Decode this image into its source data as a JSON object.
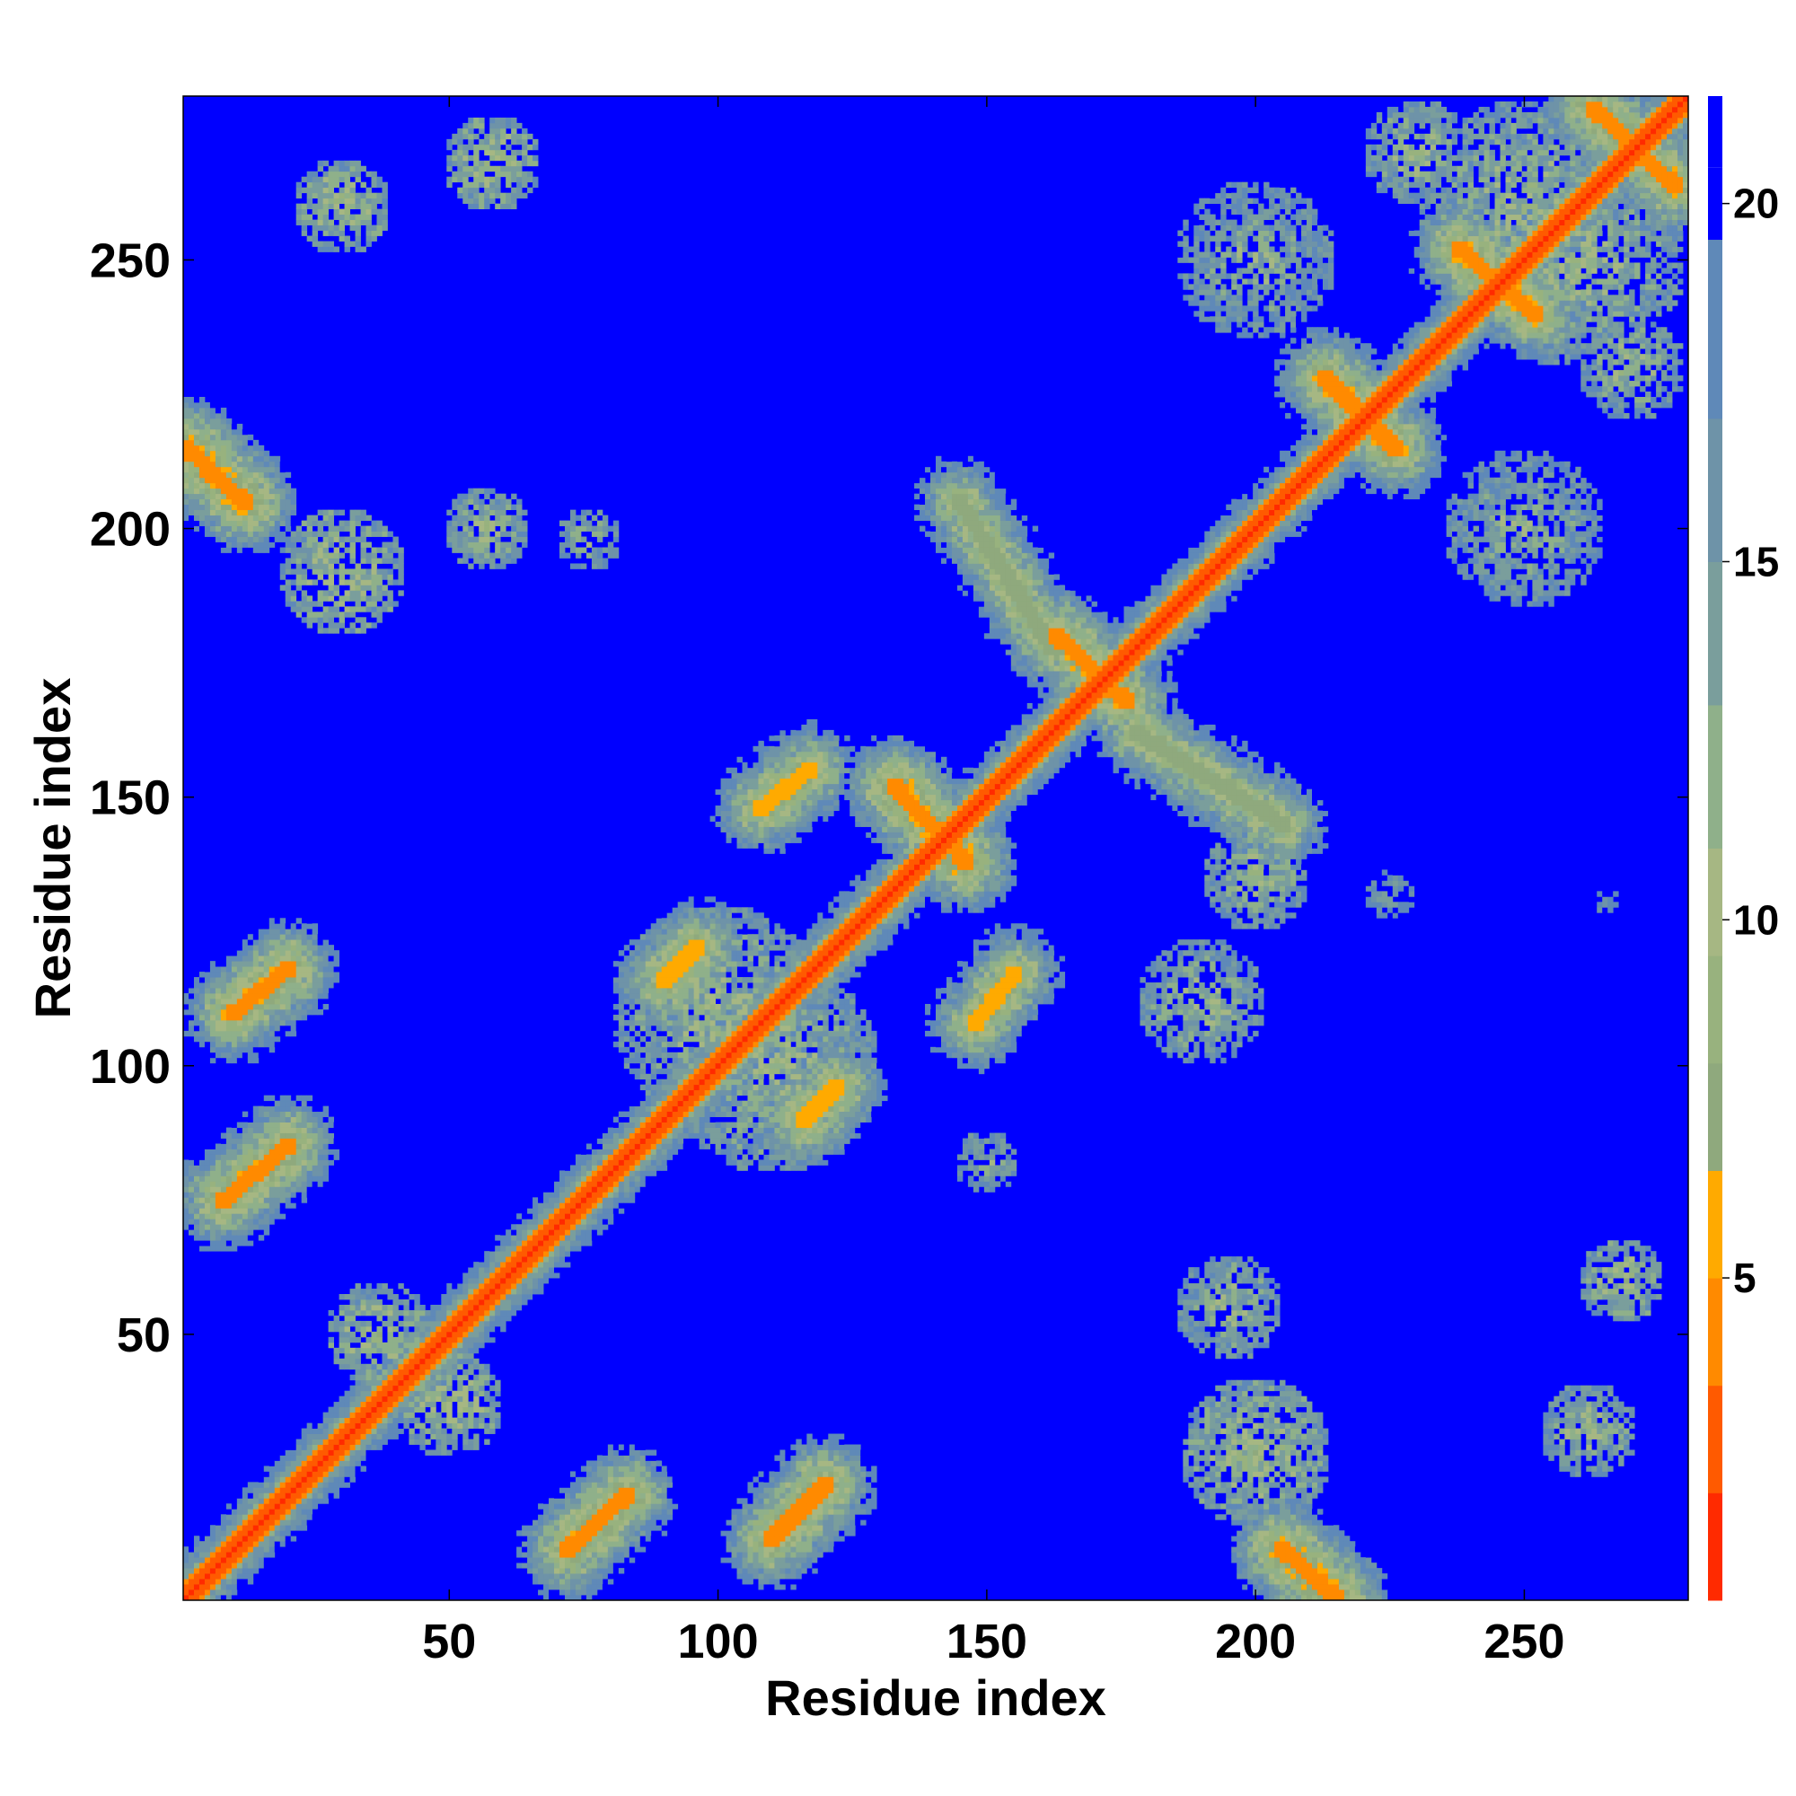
{
  "chart_data": {
    "type": "heatmap",
    "description_kind": "residue contact distance map",
    "xlabel": "Residue index",
    "ylabel": "Residue index",
    "xlim": [
      1,
      280
    ],
    "ylim": [
      1,
      280
    ],
    "xticks": [
      50,
      100,
      150,
      200,
      250
    ],
    "yticks": [
      50,
      100,
      150,
      200,
      250
    ],
    "colorbar": {
      "ticks": [
        5,
        10,
        15,
        20
      ],
      "range": [
        0.5,
        21.5
      ],
      "colors": [
        "#ff0000",
        "#ff2a00",
        "#ff5a00",
        "#ff8a00",
        "#ffaa00",
        "#8fa97d",
        "#98b27e",
        "#a6b783",
        "#8fb08a",
        "#7a9e9c",
        "#6e93a8",
        "#5f89b8",
        "#0000ff"
      ],
      "stops": [
        0.5,
        2,
        3.5,
        5,
        6.5,
        8,
        9.5,
        11,
        13,
        15,
        17,
        19.5,
        20.5
      ]
    },
    "cap_value": 21,
    "diagonal": {
      "width": 4,
      "value": 1
    },
    "features": [
      {
        "kind": "band",
        "from": [
          1,
          215
        ],
        "to": [
          12,
          205
        ],
        "value": 4
      },
      {
        "kind": "band",
        "from": [
          8,
          75
        ],
        "to": [
          20,
          85
        ],
        "value": 5
      },
      {
        "kind": "band",
        "from": [
          10,
          110
        ],
        "to": [
          20,
          118
        ],
        "value": 5
      },
      {
        "kind": "band",
        "from": [
          72,
          10
        ],
        "to": [
          83,
          20
        ],
        "value": 5
      },
      {
        "kind": "band",
        "from": [
          110,
          12
        ],
        "to": [
          120,
          22
        ],
        "value": 5
      },
      {
        "kind": "band",
        "from": [
          205,
          10
        ],
        "to": [
          215,
          1
        ],
        "value": 4
      },
      {
        "kind": "band",
        "from": [
          90,
          116
        ],
        "to": [
          96,
          122
        ],
        "value": 6
      },
      {
        "kind": "band",
        "from": [
          116,
          90
        ],
        "to": [
          122,
          96
        ],
        "value": 6
      },
      {
        "kind": "band",
        "from": [
          108,
          148
        ],
        "to": [
          117,
          155
        ],
        "value": 6
      },
      {
        "kind": "band",
        "from": [
          148,
          108
        ],
        "to": [
          155,
          117
        ],
        "value": 6
      },
      {
        "kind": "band",
        "from": [
          133,
          152
        ],
        "to": [
          146,
          138
        ],
        "value": 4
      },
      {
        "kind": "band",
        "from": [
          163,
          180
        ],
        "to": [
          176,
          168
        ],
        "value": 5
      },
      {
        "kind": "band",
        "from": [
          213,
          228
        ],
        "to": [
          226,
          215
        ],
        "value": 5
      },
      {
        "kind": "band",
        "from": [
          238,
          252
        ],
        "to": [
          252,
          240
        ],
        "value": 5
      },
      {
        "kind": "band",
        "from": [
          263,
          278
        ],
        "to": [
          278,
          264
        ],
        "value": 5
      },
      {
        "kind": "band",
        "from": [
          178,
          162
        ],
        "to": [
          205,
          145
        ],
        "value": 7
      },
      {
        "kind": "band",
        "from": [
          145,
          205
        ],
        "to": [
          162,
          178
        ],
        "value": 7
      },
      {
        "kind": "blob",
        "center": [
          30,
          260
        ],
        "radius": 9,
        "value": 9
      },
      {
        "kind": "blob",
        "center": [
          58,
          268
        ],
        "radius": 9,
        "value": 9
      },
      {
        "kind": "blob",
        "center": [
          30,
          192
        ],
        "radius": 12,
        "value": 9
      },
      {
        "kind": "blob",
        "center": [
          57,
          200
        ],
        "radius": 8,
        "value": 10
      },
      {
        "kind": "blob",
        "center": [
          76,
          198
        ],
        "radius": 6,
        "value": 11
      },
      {
        "kind": "blob",
        "center": [
          190,
          112
        ],
        "radius": 12,
        "value": 10
      },
      {
        "kind": "blob",
        "center": [
          195,
          55
        ],
        "radius": 10,
        "value": 10
      },
      {
        "kind": "blob",
        "center": [
          200,
          28
        ],
        "radius": 14,
        "value": 9
      },
      {
        "kind": "blob",
        "center": [
          268,
          60
        ],
        "radius": 8,
        "value": 9
      },
      {
        "kind": "blob",
        "center": [
          262,
          32
        ],
        "radius": 9,
        "value": 10
      },
      {
        "kind": "blob",
        "center": [
          37,
          50
        ],
        "radius": 10,
        "value": 9
      },
      {
        "kind": "blob",
        "center": [
          50,
          37
        ],
        "radius": 10,
        "value": 9
      },
      {
        "kind": "blob",
        "center": [
          150,
          82
        ],
        "radius": 6,
        "value": 11
      },
      {
        "kind": "blob",
        "center": [
          225,
          132
        ],
        "radius": 5,
        "value": 13
      },
      {
        "kind": "blob",
        "center": [
          265,
          130
        ],
        "radius": 3,
        "value": 14
      },
      {
        "kind": "blob",
        "center": [
          200,
          135
        ],
        "radius": 10,
        "value": 10
      },
      {
        "kind": "blob",
        "center": [
          110,
          100
        ],
        "radius": 20,
        "value": 10
      },
      {
        "kind": "blob",
        "center": [
          100,
          110
        ],
        "radius": 20,
        "value": 10
      },
      {
        "kind": "blob",
        "center": [
          250,
          260
        ],
        "radius": 20,
        "value": 10
      },
      {
        "kind": "blob",
        "center": [
          260,
          250
        ],
        "radius": 20,
        "value": 10
      },
      {
        "kind": "blob",
        "center": [
          200,
          250
        ],
        "radius": 15,
        "value": 11
      },
      {
        "kind": "blob",
        "center": [
          250,
          200
        ],
        "radius": 15,
        "value": 11
      },
      {
        "kind": "blob",
        "center": [
          230,
          270
        ],
        "radius": 10,
        "value": 10
      },
      {
        "kind": "blob",
        "center": [
          270,
          230
        ],
        "radius": 10,
        "value": 10
      }
    ]
  }
}
